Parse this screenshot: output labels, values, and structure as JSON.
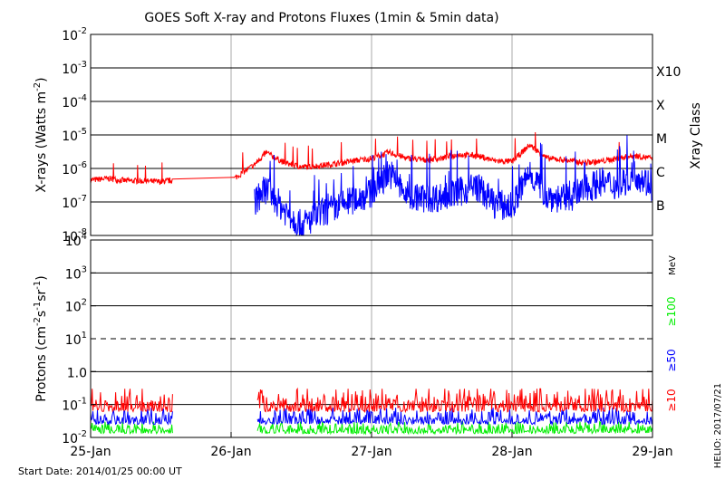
{
  "chart_data": [
    {
      "type": "line",
      "panel": "xray",
      "title": "GOES Soft X-ray and Protons Fluxes   (1min & 5min data)",
      "ylabel_main": "X-rays (Watts m",
      "ylabel_sup": "-2",
      "ylabel_close": ")",
      "yscale": "log",
      "ylim": [
        1e-08,
        0.01
      ],
      "ytick_base": "10",
      "ytick_exponents": [
        "-8",
        "-7",
        "-6",
        "-5",
        "-4",
        "-3",
        "-2"
      ],
      "right_axis_label": "Xray Class",
      "class_labels": [
        {
          "label": "B",
          "value": 1e-07
        },
        {
          "label": "C",
          "value": 1e-06
        },
        {
          "label": "M",
          "value": 1e-05
        },
        {
          "label": "X",
          "value": 0.0001
        },
        {
          "label": "X10",
          "value": 0.001
        }
      ],
      "grid": "horizontal at each decade, vertical at each day",
      "data_gap": [
        "2014-01-25 14:00",
        "2014-01-26 00:30"
      ],
      "series": [
        {
          "color": "#ff0000",
          "x": [
            "2014-01-25 00:00",
            "2014-01-25 03:00",
            "2014-01-25 06:00",
            "2014-01-25 09:00",
            "2014-01-25 12:00",
            "2014-01-25 14:00",
            "2014-01-26 00:30",
            "2014-01-26 04:00",
            "2014-01-26 06:00",
            "2014-01-26 09:00",
            "2014-01-26 12:00",
            "2014-01-26 15:00",
            "2014-01-26 18:00",
            "2014-01-26 21:00",
            "2014-01-27 00:00",
            "2014-01-27 03:00",
            "2014-01-27 06:00",
            "2014-01-27 09:00",
            "2014-01-27 12:00",
            "2014-01-27 15:00",
            "2014-01-27 18:00",
            "2014-01-27 21:00",
            "2014-01-28 00:00",
            "2014-01-28 03:00",
            "2014-01-28 06:00",
            "2014-01-28 09:00",
            "2014-01-28 12:00",
            "2014-01-28 15:00",
            "2014-01-28 18:00",
            "2014-01-28 21:00",
            "2014-01-29 00:00"
          ],
          "values": [
            4.5e-07,
            5e-07,
            4.3e-07,
            4.2e-07,
            4e-07,
            4.4e-07,
            5e-07,
            1.3e-06,
            3e-06,
            1.5e-06,
            1.1e-06,
            1.2e-06,
            1.4e-06,
            1.7e-06,
            2e-06,
            3e-06,
            2e-06,
            1.8e-06,
            2e-06,
            2.6e-06,
            2.4e-06,
            1.7e-06,
            1.6e-06,
            5e-06,
            2e-06,
            1.8e-06,
            1.5e-06,
            1.6e-06,
            2e-06,
            2.4e-06,
            2e-06
          ]
        },
        {
          "color": "#0000ff",
          "x": [
            "2014-01-26 04:00",
            "2014-01-26 06:00",
            "2014-01-26 09:00",
            "2014-01-26 12:00",
            "2014-01-26 15:00",
            "2014-01-26 18:00",
            "2014-01-26 21:00",
            "2014-01-27 00:00",
            "2014-01-27 03:00",
            "2014-01-27 06:00",
            "2014-01-27 09:00",
            "2014-01-27 12:00",
            "2014-01-27 15:00",
            "2014-01-27 18:00",
            "2014-01-27 21:00",
            "2014-01-28 00:00",
            "2014-01-28 03:00",
            "2014-01-28 06:00",
            "2014-01-28 09:00",
            "2014-01-28 12:00",
            "2014-01-28 15:00",
            "2014-01-28 18:00",
            "2014-01-28 21:00",
            "2014-01-29 00:00"
          ],
          "values": [
            1e-07,
            2.5e-07,
            6e-08,
            2e-08,
            4e-08,
            7e-08,
            1.2e-07,
            1.8e-07,
            8e-07,
            1.5e-07,
            1.3e-07,
            1.4e-07,
            2e-07,
            3e-07,
            9e-08,
            7e-08,
            8e-07,
            1.5e-07,
            1.2e-07,
            2e-07,
            4e-07,
            3e-07,
            7e-07,
            3e-07
          ]
        }
      ]
    },
    {
      "type": "line",
      "panel": "protons",
      "ylabel": "Protons (cm-2 s-1 sr-1)",
      "yscale": "log",
      "ylim": [
        0.01,
        10000.0
      ],
      "ytick_mantissa": [
        "10",
        "10",
        "10",
        "1.0",
        "10",
        "10",
        "10"
      ],
      "ytick_exponents": [
        "-2",
        "-1",
        "",
        "",
        "1",
        "2",
        "3"
      ],
      "ytick_top": [
        "10",
        "4"
      ],
      "xlim": [
        "2014-01-25",
        "2014-01-29"
      ],
      "xtick_labels": [
        "25-Jan",
        "26-Jan",
        "27-Jan",
        "28-Jan",
        "29-Jan"
      ],
      "threshold": {
        "value": 10,
        "style": "dashed"
      },
      "right_unit": "MeV",
      "grid": "horizontal at each decade, vertical at each day",
      "data_gap": [
        "2014-01-25 14:00",
        "2014-01-26 04:30"
      ],
      "series": [
        {
          "name": "≥10",
          "color": "#ff0000",
          "level": 0.09,
          "range": [
            0.06,
            0.3
          ]
        },
        {
          "name": "≥50",
          "color": "#0000ff",
          "level": 0.04,
          "range": [
            0.025,
            0.08
          ]
        },
        {
          "name": "≥100",
          "color": "#00ee00",
          "level": 0.02,
          "range": [
            0.013,
            0.03
          ]
        }
      ]
    }
  ],
  "footer": {
    "start_date": "Start Date: 2014/01/25 00:00 UT",
    "credit": "HELIO: 2017/07/21"
  },
  "labels": {
    "p_open": "Protons (cm",
    "p_e1": "-2",
    "p_s": "s",
    "p_e2": "-1",
    "p_sr": "sr",
    "p_e3": "-1",
    "p_close": ")"
  }
}
